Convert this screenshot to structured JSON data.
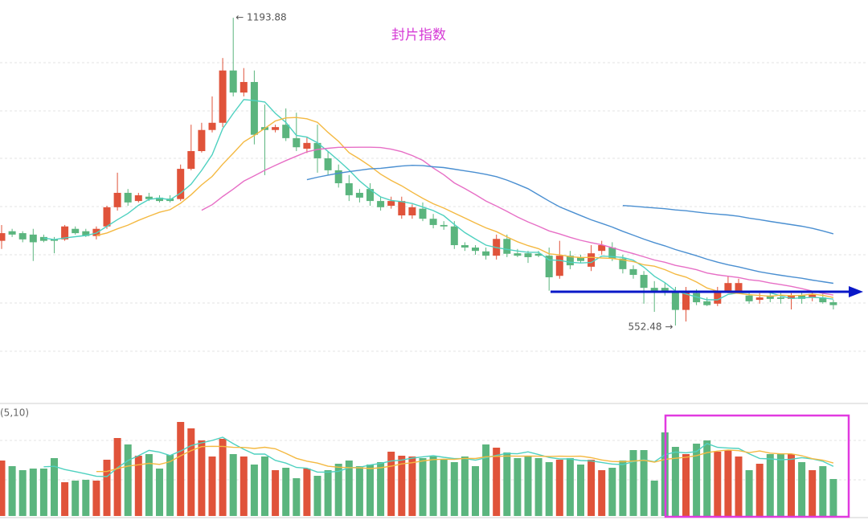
{
  "chart_data": {
    "type": "candlestick",
    "title": "封片指数",
    "ohlc": [
      [
        729,
        762,
        712,
        745
      ],
      [
        749,
        754,
        737,
        742
      ],
      [
        745,
        749,
        726,
        732
      ],
      [
        742,
        754,
        687,
        726
      ],
      [
        737,
        742,
        726,
        729
      ],
      [
        732,
        737,
        703,
        729
      ],
      [
        732,
        762,
        729,
        759
      ],
      [
        754,
        759,
        742,
        745
      ],
      [
        749,
        754,
        737,
        739
      ],
      [
        739,
        759,
        732,
        754
      ],
      [
        759,
        802,
        754,
        799
      ],
      [
        799,
        871,
        792,
        829
      ],
      [
        829,
        837,
        802,
        809
      ],
      [
        812,
        829,
        809,
        824
      ],
      [
        821,
        829,
        812,
        816
      ],
      [
        819,
        824,
        809,
        812
      ],
      [
        817,
        824,
        809,
        812
      ],
      [
        816,
        888,
        812,
        879
      ],
      [
        879,
        971,
        876,
        916
      ],
      [
        916,
        975,
        913,
        960
      ],
      [
        960,
        1030,
        955,
        975
      ],
      [
        975,
        1110,
        966,
        1084
      ],
      [
        1084,
        1193.88,
        1030,
        1038
      ],
      [
        1038,
        1089,
        1030,
        1060
      ],
      [
        1060,
        1084,
        930,
        950
      ],
      [
        966,
        1013,
        866,
        960
      ],
      [
        960,
        971,
        955,
        966
      ],
      [
        971,
        1005,
        937,
        943
      ],
      [
        943,
        996,
        916,
        924
      ],
      [
        921,
        946,
        912,
        933
      ],
      [
        933,
        971,
        871,
        901
      ],
      [
        901,
        916,
        866,
        876
      ],
      [
        876,
        888,
        840,
        849
      ],
      [
        849,
        866,
        812,
        824
      ],
      [
        829,
        837,
        809,
        819
      ],
      [
        837,
        849,
        802,
        812
      ],
      [
        812,
        821,
        792,
        799
      ],
      [
        802,
        821,
        796,
        812
      ],
      [
        782,
        821,
        775,
        812
      ],
      [
        782,
        805,
        775,
        799
      ],
      [
        796,
        809,
        770,
        775
      ],
      [
        775,
        785,
        755,
        762
      ],
      [
        762,
        770,
        752,
        759
      ],
      [
        759,
        770,
        712,
        720
      ],
      [
        720,
        726,
        708,
        715
      ],
      [
        715,
        720,
        700,
        708
      ],
      [
        707,
        715,
        690,
        698
      ],
      [
        698,
        742,
        690,
        733
      ],
      [
        733,
        742,
        695,
        702
      ],
      [
        703,
        712,
        695,
        698
      ],
      [
        703,
        708,
        683,
        695
      ],
      [
        702,
        708,
        695,
        698
      ],
      [
        698,
        715,
        625,
        653
      ],
      [
        656,
        729,
        650,
        698
      ],
      [
        698,
        708,
        670,
        678
      ],
      [
        695,
        700,
        683,
        687
      ],
      [
        675,
        720,
        666,
        703
      ],
      [
        708,
        729,
        700,
        720
      ],
      [
        715,
        726,
        687,
        692
      ],
      [
        692,
        700,
        661,
        670
      ],
      [
        670,
        678,
        650,
        658
      ],
      [
        658,
        666,
        598,
        631
      ],
      [
        631,
        645,
        581,
        625
      ],
      [
        631,
        641,
        615,
        625
      ],
      [
        625,
        633,
        552.48,
        585
      ],
      [
        585,
        633,
        561,
        625
      ],
      [
        620,
        628,
        595,
        601
      ],
      [
        603,
        611,
        593,
        595
      ],
      [
        598,
        633,
        593,
        625
      ],
      [
        625,
        656,
        620,
        641
      ],
      [
        625,
        650,
        620,
        641
      ],
      [
        615,
        625,
        598,
        603
      ],
      [
        606,
        620,
        598,
        611
      ],
      [
        615,
        625,
        601,
        608
      ],
      [
        611,
        620,
        598,
        608
      ],
      [
        608,
        620,
        586,
        615
      ],
      [
        615,
        625,
        598,
        608
      ],
      [
        611,
        625,
        603,
        618
      ],
      [
        611,
        620,
        598,
        601
      ],
      [
        601,
        606,
        586,
        595
      ]
    ],
    "volume": [
      69,
      62,
      57,
      59,
      59,
      72,
      42,
      44,
      45,
      44,
      70,
      97,
      89,
      75,
      77,
      59,
      76,
      117,
      109,
      94,
      74,
      96,
      77,
      74,
      64,
      74,
      57,
      60,
      47,
      59,
      50,
      57,
      65,
      69,
      62,
      64,
      67,
      80,
      75,
      74,
      72,
      74,
      70,
      67,
      74,
      62,
      89,
      85,
      79,
      72,
      74,
      72,
      67,
      70,
      72,
      64,
      70,
      57,
      60,
      69,
      82,
      82,
      44,
      104,
      86,
      77,
      90,
      94,
      80,
      82,
      74,
      57,
      65,
      77,
      77,
      77,
      67,
      57,
      62,
      46
    ],
    "ylim": [
      393.4,
      1230.9
    ],
    "volume_ylim": [
      0,
      137
    ],
    "up_color": "#e0533a",
    "down_color": "#5bb57e",
    "ma": [
      {
        "period": 5,
        "color": "#4fd1c0"
      },
      {
        "period": 10,
        "color": "#f4b942"
      },
      {
        "period": 20,
        "color": "#e76fc6"
      },
      {
        "period": 30,
        "color": "#4a8fd1"
      },
      {
        "period": 60,
        "color": "#4a8fd1"
      }
    ],
    "volume_label": "(5,10)",
    "volume_ma": [
      {
        "period": 5,
        "color": "#4fd1c0"
      },
      {
        "period": 10,
        "color": "#f4b942"
      }
    ],
    "annotations": [
      {
        "value": 1193.88,
        "label": "← 1193.88"
      },
      {
        "value": 552.48,
        "label": "552.48 →"
      }
    ]
  }
}
